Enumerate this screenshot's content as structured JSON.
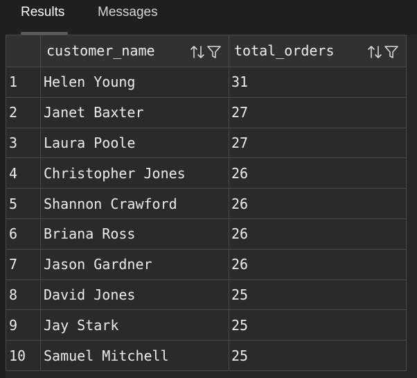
{
  "tabs": [
    {
      "label": "Results"
    },
    {
      "label": "Messages"
    }
  ],
  "columns": [
    {
      "label": "customer_name"
    },
    {
      "label": "total_orders"
    }
  ],
  "rows": [
    {
      "num": "1",
      "customer_name": "Helen Young",
      "total_orders": "31"
    },
    {
      "num": "2",
      "customer_name": "Janet Baxter",
      "total_orders": "27"
    },
    {
      "num": "3",
      "customer_name": "Laura Poole",
      "total_orders": "27"
    },
    {
      "num": "4",
      "customer_name": "Christopher Jones",
      "total_orders": "26"
    },
    {
      "num": "5",
      "customer_name": "Shannon Crawford",
      "total_orders": "26"
    },
    {
      "num": "6",
      "customer_name": "Briana Ross",
      "total_orders": "26"
    },
    {
      "num": "7",
      "customer_name": "Jason Gardner",
      "total_orders": "26"
    },
    {
      "num": "8",
      "customer_name": "David Jones",
      "total_orders": "25"
    },
    {
      "num": "9",
      "customer_name": "Jay Stark",
      "total_orders": "25"
    },
    {
      "num": "10",
      "customer_name": "Samuel Mitchell",
      "total_orders": "25"
    }
  ],
  "icons": {
    "sort": "sort-icon",
    "filter": "filter-icon"
  }
}
